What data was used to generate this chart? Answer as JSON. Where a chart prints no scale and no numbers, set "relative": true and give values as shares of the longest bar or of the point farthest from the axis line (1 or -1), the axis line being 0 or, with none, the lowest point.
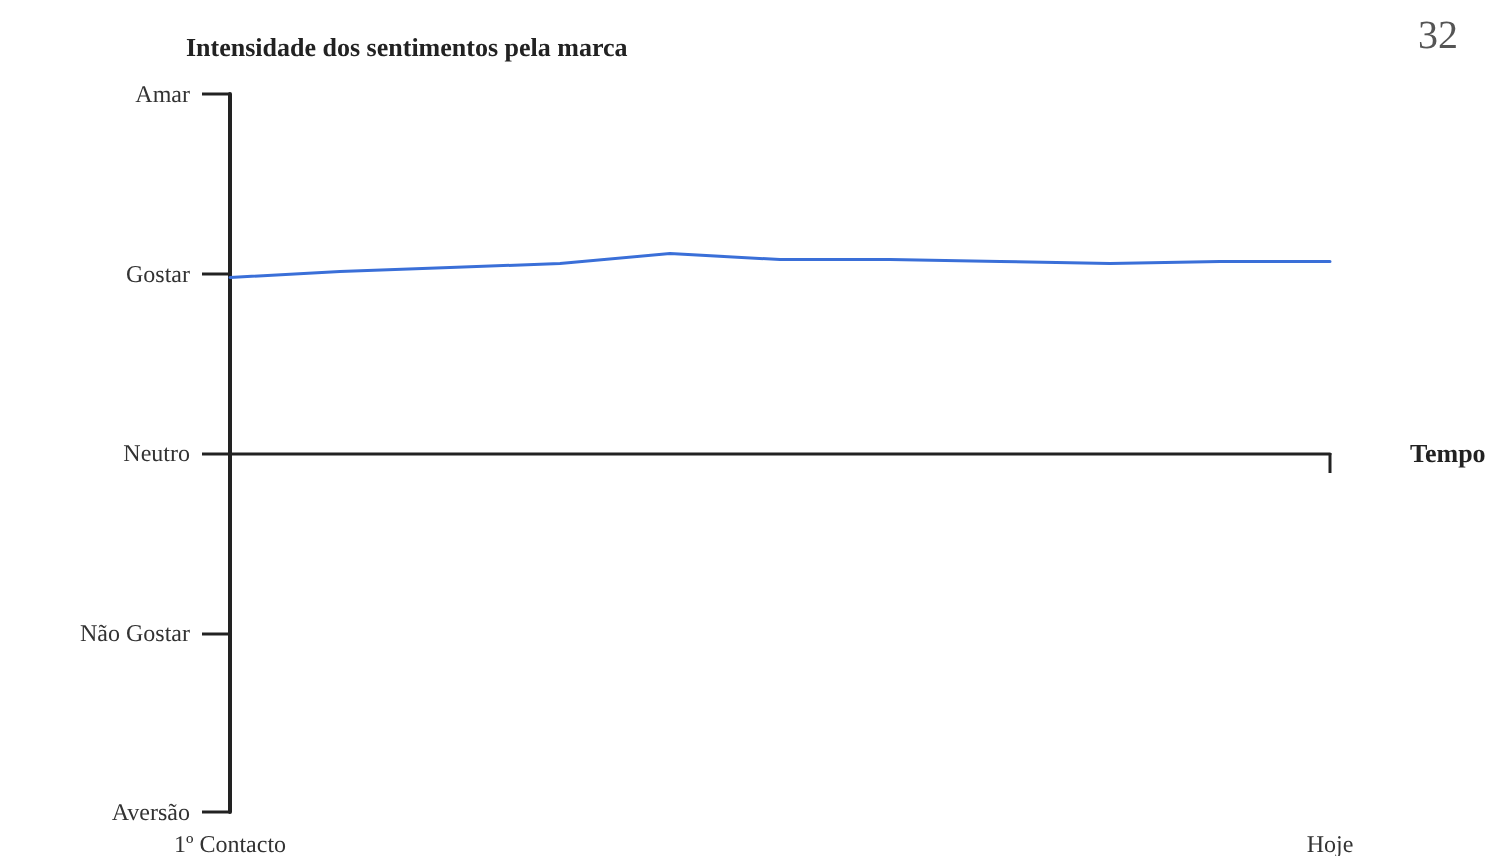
{
  "chart_data": {
    "type": "line",
    "title": "Intensidade dos sentimentos pela marca",
    "xlabel": "Tempo",
    "annotations": [
      "Amar",
      "Gostar",
      "Neutro",
      "Não Gostar",
      "Aversão",
      "32"
    ],
    "categories": [
      "1º Contacto",
      null,
      null,
      null,
      null,
      null,
      null,
      null,
      null,
      null,
      "Hoje"
    ],
    "relative": true,
    "series": [
      {
        "color": "#3a6fd8",
        "values": [
          0.88,
          0.91,
          0.93,
          0.95,
          1,
          0.97,
          0.97,
          0.96,
          0.95,
          0.96,
          0.96
        ]
      }
    ],
    "grid": false,
    "marker": "none",
    "line_style": "solid"
  }
}
